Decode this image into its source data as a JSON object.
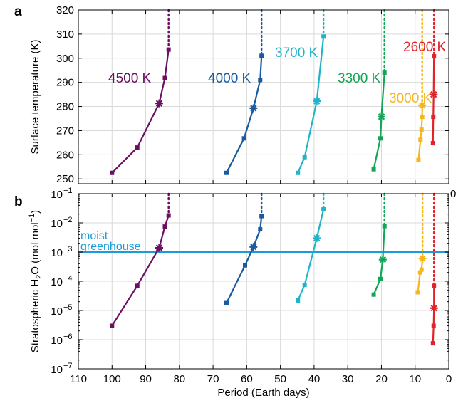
{
  "chart_data": [
    {
      "panel": "a",
      "type": "line",
      "xlabel": "Period (Earth days)",
      "ylabel": "Surface temperature (K)",
      "xlim": [
        110,
        0
      ],
      "ylim": [
        248,
        320
      ],
      "x_ticks": [
        "110",
        "100",
        "90",
        "80",
        "70",
        "60",
        "50",
        "40",
        "30",
        "20",
        "10",
        "0"
      ],
      "y_ticks": [
        "250",
        "260",
        "270",
        "280",
        "290",
        "300",
        "310",
        "320"
      ],
      "series": [
        {
          "name": "4500 K",
          "color": "#6b0f63",
          "x": [
            100,
            92.5,
            86,
            84.3,
            83.2
          ],
          "y": [
            252.5,
            263,
            281.3,
            291.8,
            303.6
          ],
          "star": [
            86,
            281.3
          ],
          "limit_x": 83.2
        },
        {
          "name": "4000 K",
          "color": "#1a5aa0",
          "x": [
            66,
            60.8,
            58,
            56,
            55.6
          ],
          "y": [
            252.5,
            266.8,
            279.3,
            291,
            301
          ],
          "star": [
            58,
            279.3
          ],
          "limit_x": 55.6
        },
        {
          "name": "3700 K",
          "color": "#1fb4c8",
          "x": [
            44.8,
            42.8,
            39.2,
            37.2
          ],
          "y": [
            252.5,
            259,
            282.2,
            309
          ],
          "star": [
            39.2,
            282.2
          ],
          "limit_x": 37.2
        },
        {
          "name": "3300 K",
          "color": "#13a557",
          "x": [
            22.3,
            20.3,
            20,
            19.1
          ],
          "y": [
            254,
            266.8,
            275.8,
            294
          ],
          "star": [
            20,
            275.8
          ],
          "limit_x": 19.1
        },
        {
          "name": "3000 K",
          "color": "#f5b71d",
          "x": [
            9,
            8.4,
            8.1,
            7.9,
            7.9
          ],
          "y": [
            257.8,
            266.2,
            270.4,
            275.7,
            280.5
          ],
          "star": [
            7.9,
            280.5
          ],
          "limit_x": 7.9
        },
        {
          "name": "2600 K",
          "color": "#e2232b",
          "x": [
            4.7,
            4.6,
            4.5,
            4.4
          ],
          "y": [
            264.8,
            275.7,
            285,
            300.8
          ],
          "star": [
            4.5,
            285
          ],
          "limit_x": 4.4
        }
      ]
    },
    {
      "panel": "b",
      "type": "line",
      "xlabel": "Period (Earth days)",
      "ylabel_main": "Stratospheric H",
      "ylabel_sub": "2",
      "ylabel_mid": "O (mol mol",
      "ylabel_sup": "−1",
      "ylabel_end": ")",
      "yscale": "log",
      "ylim": [
        1e-07,
        0.1
      ],
      "y_tick_base": "10",
      "y_tick_exps": [
        "−7",
        "−6",
        "−5",
        "−4",
        "−3",
        "−2",
        "−1"
      ],
      "moist_greenhouse_threshold": 0.001,
      "moist_greenhouse_label": [
        "moist",
        "greenhouse"
      ],
      "moist_greenhouse_color": "#1a9cd8",
      "series": [
        {
          "name": "4500 K",
          "color": "#6b0f63",
          "x": [
            100,
            92.5,
            86,
            84.3,
            83.2
          ],
          "y": [
            3e-06,
            7e-05,
            0.0014,
            0.0075,
            0.018
          ],
          "star": [
            86,
            0.0014
          ],
          "limit_x": 83.2
        },
        {
          "name": "4000 K",
          "color": "#1a5aa0",
          "x": [
            66,
            60.5,
            58,
            56,
            55.6
          ],
          "y": [
            1.8e-05,
            0.00035,
            0.0015,
            0.006,
            0.017
          ],
          "star": [
            58,
            0.0015
          ],
          "limit_x": 55.6
        },
        {
          "name": "3700 K",
          "color": "#1fb4c8",
          "x": [
            44.8,
            42.8,
            39.2,
            37.2
          ],
          "y": [
            2.2e-05,
            7.5e-05,
            0.003,
            0.029
          ],
          "star": [
            39.2,
            0.003
          ],
          "limit_x": 37.2
        },
        {
          "name": "3300 K",
          "color": "#13a557",
          "x": [
            22.3,
            20.3,
            19.6,
            19.1
          ],
          "y": [
            3.5e-05,
            0.00012,
            0.00055,
            0.0077
          ],
          "star": [
            19.6,
            0.00055
          ],
          "limit_x": 19.1
        },
        {
          "name": "3000 K",
          "color": "#f5b71d",
          "x": [
            9.2,
            8.5,
            8.1,
            7.8
          ],
          "y": [
            4.2e-05,
            0.0002,
            0.00025,
            0.0006
          ],
          "star": [
            7.8,
            0.0006
          ],
          "limit_x": 7.8
        },
        {
          "name": "2600 K",
          "color": "#e2232b",
          "x": [
            4.7,
            4.5,
            4.4,
            4.4
          ],
          "y": [
            7.5e-07,
            3e-06,
            1.2e-05,
            7e-05
          ],
          "star": [
            4.4,
            1.2e-05
          ],
          "limit_x": 4.4
        }
      ]
    }
  ],
  "panel_labels": {
    "a": "a",
    "b": "b"
  },
  "x_axis_label": "Period (Earth days)",
  "stray_tick_label": "0",
  "grid_color": "#d9d9d9"
}
